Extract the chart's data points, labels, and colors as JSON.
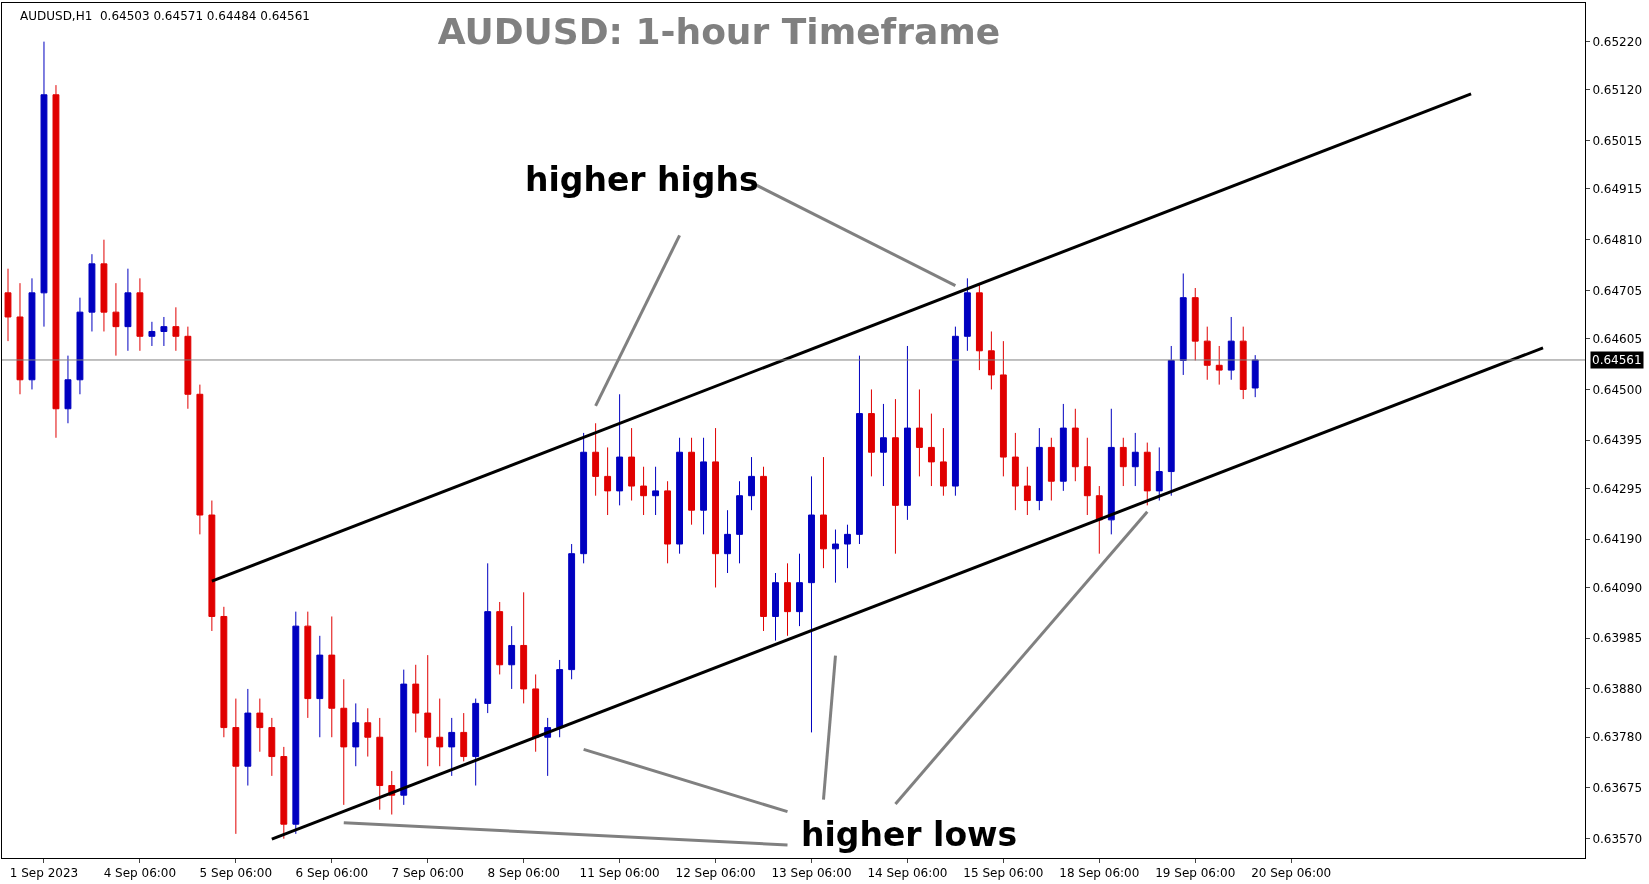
{
  "chart_data": {
    "type": "candlestick",
    "title": "AUDUSD: 1-hour Timeframe",
    "annotations": [
      "AUDUSD,H1  0.64503 0.64571 0.64484 0.64561",
      "higher highs",
      "higher lows"
    ],
    "categories": [
      null,
      null,
      null,
      "1 Sep 2023",
      null,
      null,
      null,
      null,
      null,
      null,
      null,
      "4 Sep 06:00",
      null,
      null,
      null,
      null,
      null,
      null,
      null,
      "5 Sep 06:00",
      null,
      null,
      null,
      null,
      null,
      null,
      null,
      "6 Sep 06:00",
      null,
      null,
      null,
      null,
      null,
      null,
      null,
      "7 Sep 06:00",
      null,
      null,
      null,
      null,
      null,
      null,
      null,
      "8 Sep 06:00",
      null,
      null,
      null,
      null,
      null,
      null,
      null,
      "11 Sep 06:00",
      null,
      null,
      null,
      null,
      null,
      null,
      null,
      "12 Sep 06:00",
      null,
      null,
      null,
      null,
      null,
      null,
      null,
      "13 Sep 06:00",
      null,
      null,
      null,
      null,
      null,
      null,
      null,
      "14 Sep 06:00",
      null,
      null,
      null,
      null,
      null,
      null,
      null,
      "15 Sep 06:00",
      null,
      null,
      null,
      null,
      null,
      null,
      null,
      "18 Sep 06:00",
      null,
      null,
      null,
      null,
      null,
      null,
      null,
      "19 Sep 06:00",
      null,
      null,
      null,
      null,
      null,
      null,
      null,
      "20 Sep 06:00",
      null,
      null,
      null,
      null,
      null,
      null,
      null,
      null,
      null,
      null,
      null,
      null,
      null,
      null,
      null,
      null,
      null,
      null,
      null,
      null,
      null,
      null,
      null,
      null
    ],
    "ohlc": [
      [
        0.647,
        0.6475,
        0.646,
        0.6465
      ],
      [
        0.6465,
        0.6472,
        0.6449,
        0.6452
      ],
      [
        0.6452,
        0.6473,
        0.645,
        0.647
      ],
      [
        0.647,
        0.6522,
        0.6463,
        0.6511
      ],
      [
        0.6511,
        0.6513,
        0.644,
        0.6446
      ],
      [
        0.6446,
        0.6457,
        0.6443,
        0.6452
      ],
      [
        0.6452,
        0.6469,
        0.6449,
        0.6466
      ],
      [
        0.6466,
        0.6478,
        0.6462,
        0.6476
      ],
      [
        0.6476,
        0.6481,
        0.6462,
        0.6466
      ],
      [
        0.6466,
        0.6472,
        0.6457,
        0.6463
      ],
      [
        0.6463,
        0.6475,
        0.6458,
        0.647
      ],
      [
        0.647,
        0.6473,
        0.6458,
        0.6461
      ],
      [
        0.6461,
        0.6464,
        0.6459,
        0.6462
      ],
      [
        0.6462,
        0.6465,
        0.6459,
        0.6463
      ],
      [
        0.6463,
        0.6467,
        0.6458,
        0.6461
      ],
      [
        0.6461,
        0.6463,
        0.6446,
        0.6449
      ],
      [
        0.6449,
        0.6451,
        0.642,
        0.6424
      ],
      [
        0.6424,
        0.6427,
        0.64,
        0.6403
      ],
      [
        0.6403,
        0.6405,
        0.6378,
        0.638
      ],
      [
        0.638,
        0.6386,
        0.6358,
        0.6372
      ],
      [
        0.6372,
        0.6388,
        0.6368,
        0.6383
      ],
      [
        0.6383,
        0.6386,
        0.6375,
        0.638
      ],
      [
        0.638,
        0.6382,
        0.637,
        0.6374
      ],
      [
        0.6374,
        0.6376,
        0.6357,
        0.636
      ],
      [
        0.636,
        0.6404,
        0.6358,
        0.6401
      ],
      [
        0.6401,
        0.6404,
        0.6382,
        0.6386
      ],
      [
        0.6386,
        0.6399,
        0.6378,
        0.6395
      ],
      [
        0.6395,
        0.6403,
        0.6378,
        0.6384
      ],
      [
        0.6384,
        0.639,
        0.6364,
        0.6376
      ],
      [
        0.6376,
        0.6385,
        0.6372,
        0.6381
      ],
      [
        0.6381,
        0.6384,
        0.6374,
        0.6378
      ],
      [
        0.6378,
        0.6382,
        0.6363,
        0.6368
      ],
      [
        0.6368,
        0.6371,
        0.6362,
        0.6366
      ],
      [
        0.6366,
        0.6392,
        0.6364,
        0.6389
      ],
      [
        0.6389,
        0.6393,
        0.6379,
        0.6383
      ],
      [
        0.6383,
        0.6395,
        0.6372,
        0.6378
      ],
      [
        0.6378,
        0.6386,
        0.6372,
        0.6376
      ],
      [
        0.6376,
        0.6382,
        0.637,
        0.6379
      ],
      [
        0.6379,
        0.6383,
        0.6373,
        0.6374
      ],
      [
        0.6374,
        0.6386,
        0.6368,
        0.6385
      ],
      [
        0.6385,
        0.6414,
        0.6383,
        0.6404
      ],
      [
        0.6404,
        0.6406,
        0.6391,
        0.6393
      ],
      [
        0.6393,
        0.6401,
        0.6388,
        0.6397
      ],
      [
        0.6397,
        0.6408,
        0.6385,
        0.6388
      ],
      [
        0.6388,
        0.6391,
        0.6375,
        0.6378
      ],
      [
        0.6378,
        0.6382,
        0.637,
        0.638
      ],
      [
        0.638,
        0.6394,
        0.6378,
        0.6392
      ],
      [
        0.6392,
        0.6418,
        0.639,
        0.6416
      ],
      [
        0.6416,
        0.6441,
        0.6414,
        0.6437
      ],
      [
        0.6437,
        0.6443,
        0.6428,
        0.6432
      ],
      [
        0.6432,
        0.6438,
        0.6424,
        0.6429
      ],
      [
        0.6429,
        0.6449,
        0.6426,
        0.6436
      ],
      [
        0.6436,
        0.6442,
        0.6427,
        0.643
      ],
      [
        0.643,
        0.6434,
        0.6424,
        0.6428
      ],
      [
        0.6428,
        0.6434,
        0.6424,
        0.6429
      ],
      [
        0.6429,
        0.6431,
        0.6414,
        0.6418
      ],
      [
        0.6418,
        0.644,
        0.6416,
        0.6437
      ],
      [
        0.6437,
        0.644,
        0.6422,
        0.6425
      ],
      [
        0.6425,
        0.644,
        0.642,
        0.6435
      ],
      [
        0.6435,
        0.6442,
        0.6409,
        0.6416
      ],
      [
        0.6416,
        0.6425,
        0.6412,
        0.642
      ],
      [
        0.642,
        0.6431,
        0.6414,
        0.6428
      ],
      [
        0.6428,
        0.6436,
        0.6425,
        0.6432
      ],
      [
        0.6432,
        0.6434,
        0.64,
        0.6403
      ],
      [
        0.6403,
        0.6412,
        0.6398,
        0.641
      ],
      [
        0.641,
        0.6414,
        0.6399,
        0.6404
      ],
      [
        0.6404,
        0.6416,
        0.6401,
        0.641
      ],
      [
        0.641,
        0.6432,
        0.6379,
        0.6424
      ],
      [
        0.6424,
        0.6436,
        0.6413,
        0.6417
      ],
      [
        0.6417,
        0.6421,
        0.641,
        0.6418
      ],
      [
        0.6418,
        0.6422,
        0.6413,
        0.642
      ],
      [
        0.642,
        0.6457,
        0.6418,
        0.6445
      ],
      [
        0.6445,
        0.645,
        0.6432,
        0.6437
      ],
      [
        0.6437,
        0.6447,
        0.643,
        0.644
      ],
      [
        0.644,
        0.6448,
        0.6416,
        0.6426
      ],
      [
        0.6426,
        0.6459,
        0.6423,
        0.6442
      ],
      [
        0.6442,
        0.645,
        0.6432,
        0.6438
      ],
      [
        0.6438,
        0.6445,
        0.643,
        0.6435
      ],
      [
        0.6435,
        0.6442,
        0.6428,
        0.643
      ],
      [
        0.643,
        0.6463,
        0.6428,
        0.6461
      ],
      [
        0.6461,
        0.6473,
        0.6458,
        0.647
      ],
      [
        0.647,
        0.6472,
        0.6454,
        0.6458
      ],
      [
        0.6458,
        0.6462,
        0.645,
        0.6453
      ],
      [
        0.6453,
        0.646,
        0.6432,
        0.6436
      ],
      [
        0.6436,
        0.6441,
        0.6425,
        0.643
      ],
      [
        0.643,
        0.6434,
        0.6424,
        0.6427
      ],
      [
        0.6427,
        0.6442,
        0.6425,
        0.6438
      ],
      [
        0.6438,
        0.644,
        0.6427,
        0.6431
      ],
      [
        0.6431,
        0.6447,
        0.6429,
        0.6442
      ],
      [
        0.6442,
        0.6446,
        0.6431,
        0.6434
      ],
      [
        0.6434,
        0.644,
        0.6424,
        0.6428
      ],
      [
        0.6428,
        0.643,
        0.6416,
        0.6423
      ],
      [
        0.6423,
        0.6446,
        0.642,
        0.6438
      ],
      [
        0.6438,
        0.644,
        0.643,
        0.6434
      ],
      [
        0.6434,
        0.6441,
        0.643,
        0.6437
      ],
      [
        0.6437,
        0.6439,
        0.6426,
        0.6429
      ],
      [
        0.6429,
        0.6438,
        0.6427,
        0.6433
      ],
      [
        0.6433,
        0.6459,
        0.6428,
        0.6456
      ],
      [
        0.6456,
        0.6474,
        0.6453,
        0.6469
      ],
      [
        0.6469,
        0.6471,
        0.6456,
        0.646
      ],
      [
        0.646,
        0.6463,
        0.6452,
        0.6455
      ],
      [
        0.6455,
        0.6459,
        0.6451,
        0.6454
      ],
      [
        0.6454,
        0.6465,
        0.6452,
        0.646
      ],
      [
        0.646,
        0.6463,
        0.6448,
        0.645
      ],
      [
        0.64503,
        0.64571,
        0.64484,
        0.64561
      ],
      null,
      null,
      null,
      null,
      null,
      null,
      null,
      null,
      null,
      null,
      null,
      null,
      null,
      null,
      null,
      null,
      null,
      null,
      null,
      null,
      null,
      null,
      null,
      null,
      null,
      null,
      null
    ],
    "colors": [
      "#e00000",
      "#e00000",
      "#0000c0",
      "#0000c0",
      "#e00000",
      "#0000c0",
      "#0000c0",
      "#0000c0",
      "#e00000",
      "#e00000",
      "#0000c0",
      "#e00000",
      "#0000c0",
      "#0000c0",
      "#e00000",
      "#e00000",
      "#e00000",
      "#e00000",
      "#e00000",
      "#e00000",
      "#0000c0",
      "#e00000",
      "#e00000",
      "#e00000",
      "#0000c0",
      "#e00000",
      "#0000c0",
      "#e00000",
      "#e00000",
      "#0000c0",
      "#e00000",
      "#e00000",
      "#e00000",
      "#0000c0",
      "#e00000",
      "#e00000",
      "#e00000",
      "#0000c0",
      "#e00000",
      "#0000c0",
      "#0000c0",
      "#e00000",
      "#0000c0",
      "#e00000",
      "#e00000",
      "#0000c0",
      "#0000c0",
      "#0000c0",
      "#0000c0",
      "#e00000",
      "#e00000",
      "#0000c0",
      "#e00000",
      "#e00000",
      "#0000c0",
      "#e00000",
      "#0000c0",
      "#e00000",
      "#0000c0",
      "#e00000",
      "#0000c0",
      "#0000c0",
      "#0000c0",
      "#e00000",
      "#0000c0",
      "#e00000",
      "#0000c0",
      "#0000c0",
      "#e00000",
      "#0000c0",
      "#0000c0",
      "#0000c0",
      "#e00000",
      "#0000c0",
      "#e00000",
      "#0000c0",
      "#e00000",
      "#e00000",
      "#e00000",
      "#0000c0",
      "#0000c0",
      "#e00000",
      "#e00000",
      "#e00000",
      "#e00000",
      "#e00000",
      "#0000c0",
      "#e00000",
      "#0000c0",
      "#e00000",
      "#e00000",
      "#e00000",
      "#0000c0",
      "#e00000",
      "#0000c0",
      "#e00000",
      "#0000c0",
      "#0000c0",
      "#0000c0",
      "#e00000",
      "#e00000",
      "#e00000",
      "#0000c0",
      "#e00000",
      "#0000c0",
      null,
      null,
      null,
      null,
      null,
      null,
      null,
      null,
      null,
      null,
      null,
      null,
      null,
      null,
      null,
      null,
      null,
      null,
      null,
      null,
      null,
      null,
      null,
      null,
      null,
      null,
      null
    ],
    "series": [
      {
        "type": "line",
        "color": "#000000",
        "values": [
          null,
          null,
          null,
          null,
          null,
          null,
          null,
          null,
          null,
          null,
          null,
          null,
          null,
          null,
          null,
          null,
          null,
          0.64103,
          null,
          null,
          null,
          null,
          null,
          null,
          null,
          null,
          null,
          null,
          null,
          null,
          null,
          null,
          null,
          null,
          null,
          null,
          null,
          null,
          null,
          null,
          null,
          null,
          null,
          null,
          null,
          null,
          null,
          null,
          null,
          null,
          null,
          null,
          null,
          null,
          null,
          null,
          null,
          null,
          null,
          null,
          null,
          null,
          null,
          null,
          null,
          null,
          null,
          null,
          null,
          null,
          null,
          null,
          null,
          null,
          null,
          null,
          null,
          null,
          null,
          null,
          null,
          null,
          null,
          null,
          null,
          null,
          null,
          null,
          null,
          null,
          null,
          null,
          null,
          null,
          null,
          null,
          null,
          null,
          null,
          null,
          null,
          null,
          null,
          null,
          null,
          null,
          null,
          null,
          null,
          null,
          null,
          null,
          null,
          null,
          null,
          null,
          null,
          null,
          null,
          null,
          null,
          null,
          0.65112,
          null,
          null,
          null,
          null,
          null,
          null,
          null,
          null,
          null
        ]
      },
      {
        "type": "line",
        "color": "#000000",
        "values": [
          null,
          null,
          null,
          null,
          null,
          null,
          null,
          null,
          null,
          null,
          null,
          null,
          null,
          null,
          null,
          null,
          null,
          null,
          null,
          null,
          null,
          null,
          0.63569,
          null,
          null,
          null,
          null,
          null,
          null,
          null,
          null,
          null,
          null,
          null,
          null,
          null,
          null,
          null,
          null,
          null,
          null,
          null,
          null,
          null,
          null,
          null,
          null,
          null,
          null,
          null,
          null,
          null,
          null,
          null,
          null,
          null,
          null,
          null,
          null,
          null,
          null,
          null,
          null,
          null,
          null,
          null,
          null,
          null,
          null,
          null,
          null,
          null,
          null,
          null,
          null,
          null,
          null,
          null,
          null,
          null,
          null,
          null,
          null,
          null,
          null,
          null,
          null,
          null,
          null,
          null,
          null,
          null,
          null,
          null,
          null,
          null,
          null,
          null,
          null,
          null,
          null,
          null,
          null,
          null,
          null,
          null,
          null,
          null,
          null,
          null,
          null,
          null,
          null,
          null,
          null,
          null,
          null,
          null,
          null,
          null,
          null,
          null,
          null,
          null,
          null,
          null,
          null,
          null,
          0.64586,
          null,
          null,
          null
        ]
      },
      {
        "type": "line",
        "color": "#808080",
        "values": [
          null,
          null,
          null,
          null,
          null,
          null,
          null,
          null,
          null,
          null,
          null,
          null,
          null,
          null,
          null,
          null,
          null,
          null,
          null,
          null,
          null,
          null,
          null,
          null,
          null,
          null,
          null,
          null,
          null,
          null,
          null,
          null,
          null,
          null,
          null,
          null,
          null,
          null,
          null,
          null,
          null,
          null,
          null,
          null,
          null,
          null,
          null,
          null,
          null,
          0.64466,
          null,
          null,
          null,
          null,
          null,
          null,
          0.64819,
          null,
          null,
          null,
          null,
          null,
          null,
          null,
          null,
          null,
          null,
          null,
          null,
          null,
          null,
          null,
          null,
          null,
          null,
          null,
          null,
          null,
          null,
          null,
          null,
          null,
          null,
          null,
          null,
          null,
          null,
          null,
          null,
          null,
          null,
          null,
          null,
          null,
          null,
          null,
          null,
          null,
          null,
          null,
          null,
          null,
          null,
          null,
          null,
          null,
          null,
          null,
          null,
          null,
          null,
          null,
          null,
          null,
          null,
          null,
          null,
          null,
          null,
          null,
          null,
          null,
          null,
          null,
          null,
          null,
          null,
          null,
          null,
          null,
          null,
          null
        ]
      },
      {
        "type": "line",
        "color": "#808080",
        "values": [
          null,
          null,
          null,
          null,
          null,
          null,
          null,
          null,
          null,
          null,
          null,
          null,
          null,
          null,
          null,
          null,
          null,
          null,
          null,
          null,
          null,
          null,
          null,
          null,
          null,
          null,
          null,
          null,
          null,
          null,
          null,
          null,
          null,
          null,
          null,
          null,
          null,
          null,
          null,
          null,
          null,
          null,
          null,
          null,
          null,
          null,
          null,
          null,
          null,
          null,
          null,
          null,
          null,
          null,
          null,
          null,
          null,
          null,
          null,
          null,
          null,
          null,
          0.64928,
          null,
          null,
          null,
          null,
          null,
          null,
          null,
          null,
          null,
          null,
          null,
          null,
          null,
          null,
          null,
          null,
          0.64715,
          null,
          null,
          null,
          null,
          null,
          null,
          null,
          null,
          null,
          null,
          null,
          null,
          null,
          null,
          null,
          null,
          null,
          null,
          null,
          null,
          null,
          null,
          null,
          null,
          null,
          null,
          null,
          null,
          null,
          null,
          null,
          null,
          null,
          null,
          null,
          null,
          null,
          null,
          null,
          null,
          null,
          null,
          null,
          null,
          null,
          null,
          null,
          null,
          null,
          null,
          null,
          null
        ]
      },
      {
        "type": "line",
        "color": "#808080",
        "values": [
          null,
          null,
          null,
          null,
          null,
          null,
          null,
          null,
          null,
          null,
          null,
          null,
          null,
          null,
          null,
          null,
          null,
          null,
          null,
          null,
          null,
          null,
          null,
          null,
          null,
          null,
          null,
          null,
          null,
          null,
          null,
          null,
          null,
          null,
          null,
          null,
          null,
          null,
          null,
          null,
          null,
          null,
          null,
          null,
          null,
          null,
          null,
          null,
          0.63755,
          null,
          null,
          null,
          null,
          null,
          null,
          null,
          null,
          null,
          null,
          null,
          null,
          null,
          null,
          null,
          null,
          0.63626,
          null,
          null,
          null,
          null,
          null,
          null,
          null,
          null,
          null,
          null,
          null,
          null,
          null,
          null,
          null,
          null,
          null,
          null,
          null,
          null,
          null,
          null,
          null,
          null,
          null,
          null,
          null,
          null,
          null,
          null,
          null,
          null,
          null,
          null,
          null,
          null,
          null,
          null,
          null,
          null,
          null,
          null,
          null,
          null,
          null,
          null,
          null,
          null,
          null,
          null,
          null,
          null,
          null,
          null,
          null,
          null,
          null,
          null,
          null,
          null,
          null,
          null,
          null,
          null,
          null,
          null
        ]
      },
      {
        "type": "line",
        "color": "#808080",
        "values": [
          null,
          null,
          null,
          null,
          null,
          null,
          null,
          null,
          null,
          null,
          null,
          null,
          null,
          null,
          null,
          null,
          null,
          null,
          null,
          null,
          null,
          null,
          null,
          null,
          null,
          null,
          null,
          null,
          0.63603,
          null,
          null,
          null,
          null,
          null,
          null,
          null,
          null,
          null,
          null,
          null,
          null,
          null,
          null,
          null,
          null,
          null,
          null,
          null,
          null,
          null,
          null,
          null,
          null,
          null,
          null,
          null,
          null,
          null,
          null,
          null,
          null,
          null,
          null,
          null,
          null,
          0.63557,
          null,
          null,
          null,
          null,
          null,
          null,
          null,
          null,
          null,
          null,
          null,
          null,
          null,
          null,
          null,
          null,
          null,
          null,
          null,
          null,
          null,
          null,
          null,
          null,
          null,
          null,
          null,
          null,
          null,
          null,
          null,
          null,
          null,
          null,
          null,
          null,
          null,
          null,
          null,
          null,
          null,
          null,
          null,
          null,
          null,
          null,
          null,
          null,
          null,
          null,
          null,
          null,
          null,
          null,
          null,
          null,
          null,
          null,
          null,
          null,
          null,
          null,
          null,
          null,
          null,
          null
        ]
      },
      {
        "type": "line",
        "color": "#808080",
        "values": [
          null,
          null,
          null,
          null,
          null,
          null,
          null,
          null,
          null,
          null,
          null,
          null,
          null,
          null,
          null,
          null,
          null,
          null,
          null,
          null,
          null,
          null,
          null,
          null,
          null,
          null,
          null,
          null,
          null,
          null,
          null,
          null,
          null,
          null,
          null,
          null,
          null,
          null,
          null,
          null,
          null,
          null,
          null,
          null,
          null,
          null,
          null,
          null,
          null,
          null,
          null,
          null,
          null,
          null,
          null,
          null,
          null,
          null,
          null,
          null,
          null,
          null,
          null,
          null,
          null,
          null,
          null,
          null,
          0.63651,
          0.63949,
          null,
          null,
          null,
          null,
          null,
          null,
          null,
          null,
          null,
          null,
          null,
          null,
          null,
          null,
          null,
          null,
          null,
          null,
          null,
          null,
          null,
          null,
          null,
          null,
          null,
          null,
          null,
          null,
          null,
          null,
          null,
          null,
          null,
          null,
          null,
          null,
          null,
          null,
          null,
          null,
          null,
          null,
          null,
          null,
          null,
          null,
          null,
          null,
          null,
          null,
          null,
          null,
          null,
          null,
          null,
          null,
          null,
          null,
          null,
          null,
          null,
          null
        ]
      },
      {
        "type": "line",
        "color": "#808080",
        "values": [
          null,
          null,
          null,
          null,
          null,
          null,
          null,
          null,
          null,
          null,
          null,
          null,
          null,
          null,
          null,
          null,
          null,
          null,
          null,
          null,
          null,
          null,
          null,
          null,
          null,
          null,
          null,
          null,
          null,
          null,
          null,
          null,
          null,
          null,
          null,
          null,
          null,
          null,
          null,
          null,
          null,
          null,
          null,
          null,
          null,
          null,
          null,
          null,
          null,
          null,
          null,
          null,
          null,
          null,
          null,
          null,
          null,
          null,
          null,
          null,
          null,
          null,
          null,
          null,
          null,
          null,
          null,
          null,
          null,
          null,
          null,
          null,
          null,
          null,
          0.63642,
          null,
          null,
          null,
          null,
          null,
          null,
          null,
          null,
          null,
          null,
          null,
          null,
          null,
          null,
          null,
          null,
          null,
          null,
          null,
          null,
          0.64247,
          null,
          null,
          null,
          null,
          null,
          null,
          null,
          null,
          null,
          null,
          null,
          null,
          null,
          null,
          null,
          null,
          null,
          null,
          null,
          null,
          null,
          null,
          null,
          null,
          null,
          null,
          null,
          null,
          null,
          null,
          null,
          null,
          null,
          null,
          null,
          null
        ]
      }
    ],
    "ref_lines": [
      {
        "axis": "y",
        "value": 0.64561,
        "label": "0.64561",
        "color": "#808080"
      }
    ],
    "ylim": [
      0.6353,
      0.653
    ],
    "yticks": [
      {
        "value": 0.6522,
        "label": "0.65220"
      },
      {
        "value": 0.6512,
        "label": "0.65120"
      },
      {
        "value": 0.65015,
        "label": "0.65015"
      },
      {
        "value": 0.64915,
        "label": "0.64915"
      },
      {
        "value": 0.6481,
        "label": "0.64810"
      },
      {
        "value": 0.64705,
        "label": "0.64705"
      },
      {
        "value": 0.64605,
        "label": "0.64605"
      },
      {
        "value": 0.645,
        "label": "0.64500"
      },
      {
        "value": 0.64395,
        "label": "0.64395"
      },
      {
        "value": 0.64295,
        "label": "0.64295"
      },
      {
        "value": 0.6419,
        "label": "0.64190"
      },
      {
        "value": 0.6409,
        "label": "0.64090"
      },
      {
        "value": 0.63985,
        "label": "0.63985"
      },
      {
        "value": 0.6388,
        "label": "0.63880"
      },
      {
        "value": 0.6378,
        "label": "0.63780"
      },
      {
        "value": 0.63675,
        "label": "0.63675"
      },
      {
        "value": 0.6357,
        "label": "0.63570"
      }
    ]
  }
}
